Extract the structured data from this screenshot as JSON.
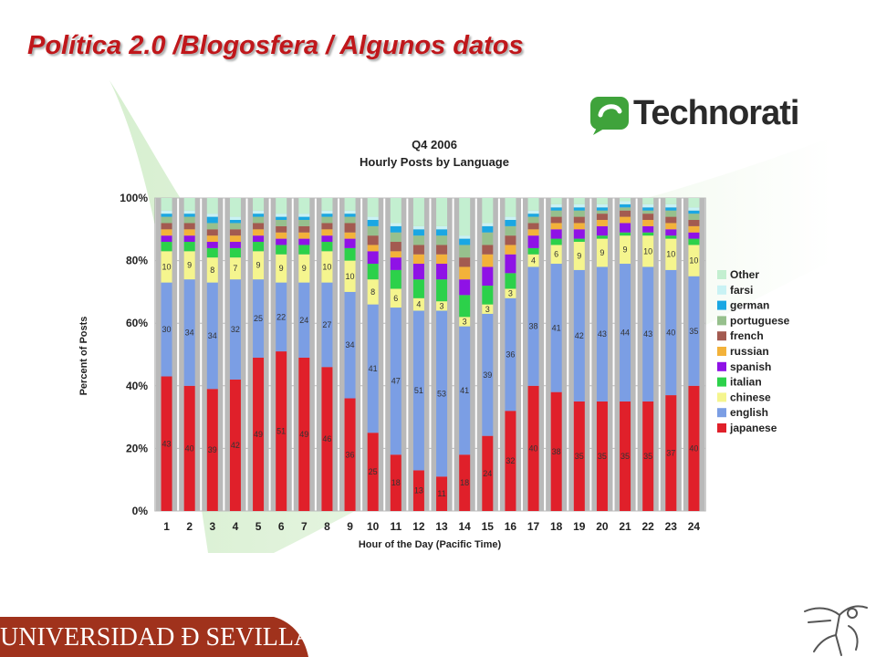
{
  "slide": {
    "title": "Política 2.0 /Blogosfera / Algunos datos"
  },
  "logo": {
    "text": "Technorati",
    "icon": "speech-bubble-icon",
    "color": "#3fa33b"
  },
  "footer": {
    "university": "UNIVERSIDAD Ð SEVILLA",
    "band_color": "#a0321c",
    "emblem": "giralda-weathervane-icon"
  },
  "chart_data": {
    "type": "bar",
    "stacked": true,
    "title": "Q4 2006",
    "subtitle": "Hourly Posts by Language",
    "xlabel": "Hour of the Day (Pacific Time)",
    "ylabel": "Percent of Posts",
    "ylim": [
      0,
      100
    ],
    "yticks": [
      "0%",
      "20%",
      "40%",
      "60%",
      "80%",
      "100%"
    ],
    "grid": true,
    "legend_position": "right",
    "categories": [
      "1",
      "2",
      "3",
      "4",
      "5",
      "6",
      "7",
      "8",
      "9",
      "10",
      "11",
      "12",
      "13",
      "14",
      "15",
      "16",
      "17",
      "18",
      "19",
      "20",
      "21",
      "22",
      "23",
      "24"
    ],
    "series": [
      {
        "name": "japanese",
        "color": "#e0202a",
        "values": [
          43,
          40,
          39,
          42,
          49,
          51,
          49,
          46,
          36,
          25,
          18,
          13,
          11,
          18,
          24,
          32,
          40,
          38,
          35,
          35,
          35,
          35,
          37,
          40
        ],
        "labels": [
          "43",
          "40",
          "39",
          "42",
          "49",
          "51",
          "49",
          "46",
          "36",
          "25",
          "18",
          "13",
          "11",
          "18",
          "24",
          "32",
          "40",
          "38",
          "35",
          "35",
          "35",
          "35",
          "37",
          "40"
        ]
      },
      {
        "name": "english",
        "color": "#7b9ee4",
        "values": [
          30,
          34,
          34,
          32,
          25,
          22,
          24,
          27,
          34,
          41,
          47,
          51,
          53,
          41,
          39,
          36,
          38,
          41,
          42,
          43,
          44,
          43,
          40,
          35
        ],
        "labels": [
          "30",
          "34",
          "34",
          "32",
          "25",
          "22",
          "24",
          "27",
          "34",
          "41",
          "47",
          "51",
          "53",
          "41",
          "39",
          "36",
          "38",
          "41",
          "42",
          "43",
          "44",
          "43",
          "40",
          "35"
        ]
      },
      {
        "name": "chinese",
        "color": "#f5f58e",
        "values": [
          10,
          9,
          8,
          7,
          9,
          9,
          9,
          10,
          10,
          8,
          6,
          4,
          3,
          3,
          3,
          3,
          4,
          6,
          9,
          9,
          9,
          10,
          10,
          10
        ],
        "labels": [
          "10",
          "9",
          "8",
          "7",
          "9",
          "9",
          "9",
          "10",
          "10",
          "8",
          "6",
          "4",
          "3",
          "3",
          "3",
          "3",
          "4",
          "6",
          "9",
          "9",
          "9",
          "10",
          "10",
          "10"
        ]
      },
      {
        "name": "italian",
        "color": "#2cd14a",
        "values": [
          3,
          3,
          3,
          3,
          3,
          3,
          3,
          3,
          4,
          5,
          6,
          6,
          7,
          7,
          6,
          5,
          2,
          2,
          1,
          1,
          1,
          1,
          1,
          2
        ]
      },
      {
        "name": "spanish",
        "color": "#8f12e6",
        "values": [
          2,
          2,
          2,
          2,
          2,
          2,
          2,
          2,
          3,
          4,
          4,
          5,
          5,
          5,
          6,
          6,
          4,
          3,
          3,
          3,
          3,
          2,
          2,
          2
        ]
      },
      {
        "name": "russian",
        "color": "#f3b23a",
        "values": [
          2,
          2,
          2,
          2,
          2,
          2,
          2,
          2,
          2,
          2,
          2,
          3,
          3,
          4,
          4,
          3,
          2,
          2,
          2,
          2,
          2,
          2,
          2,
          2
        ]
      },
      {
        "name": "french",
        "color": "#a35a50",
        "values": [
          2,
          2,
          2,
          2,
          2,
          2,
          2,
          2,
          3,
          3,
          3,
          3,
          3,
          3,
          3,
          3,
          2,
          2,
          2,
          2,
          2,
          2,
          2,
          2
        ]
      },
      {
        "name": "portuguese",
        "color": "#97c08d",
        "values": [
          2,
          2,
          2,
          2,
          2,
          2,
          2,
          2,
          2,
          3,
          3,
          3,
          3,
          4,
          4,
          3,
          2,
          2,
          2,
          1,
          1,
          1,
          2,
          2
        ]
      },
      {
        "name": "german",
        "color": "#1aa7e3",
        "values": [
          1,
          1,
          2,
          1,
          1,
          1,
          1,
          1,
          1,
          2,
          2,
          2,
          2,
          2,
          2,
          2,
          1,
          1,
          1,
          1,
          1,
          1,
          1,
          1
        ]
      },
      {
        "name": "farsi",
        "color": "#c9f2f4",
        "values": [
          1,
          1,
          1,
          1,
          1,
          1,
          1,
          1,
          1,
          1,
          1,
          1,
          1,
          1,
          1,
          1,
          1,
          1,
          1,
          1,
          1,
          1,
          1,
          1
        ]
      },
      {
        "name": "Other",
        "color": "#c3efd0",
        "values": [
          4,
          4,
          5,
          6,
          4,
          5,
          5,
          4,
          4,
          6,
          8,
          9,
          9,
          12,
          8,
          6,
          4,
          2,
          2,
          2,
          1,
          2,
          2,
          3
        ]
      }
    ]
  }
}
